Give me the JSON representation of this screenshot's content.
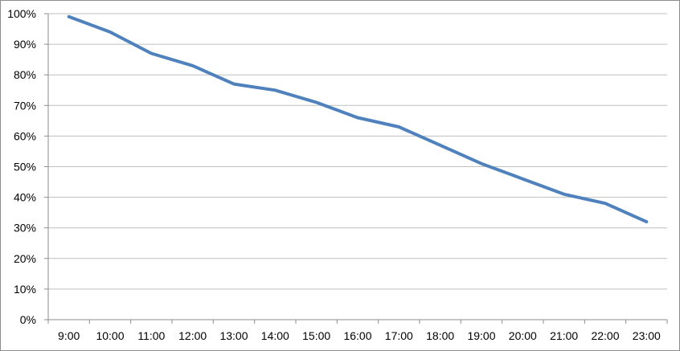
{
  "chart_data": {
    "type": "line",
    "categories": [
      "9:00",
      "10:00",
      "11:00",
      "12:00",
      "13:00",
      "14:00",
      "15:00",
      "16:00",
      "17:00",
      "18:00",
      "19:00",
      "20:00",
      "21:00",
      "22:00",
      "23:00"
    ],
    "series": [
      {
        "values": [
          99,
          94,
          87,
          83,
          77,
          75,
          71,
          66,
          63,
          57,
          51,
          46,
          41,
          38,
          32
        ],
        "color": "#4f81bd"
      }
    ],
    "y_ticks": [
      "0%",
      "10%",
      "20%",
      "30%",
      "40%",
      "50%",
      "60%",
      "70%",
      "80%",
      "90%",
      "100%"
    ],
    "ylim": [
      0,
      100
    ],
    "grid": true,
    "legend": "none",
    "title": "",
    "xlabel": "",
    "ylabel": ""
  }
}
